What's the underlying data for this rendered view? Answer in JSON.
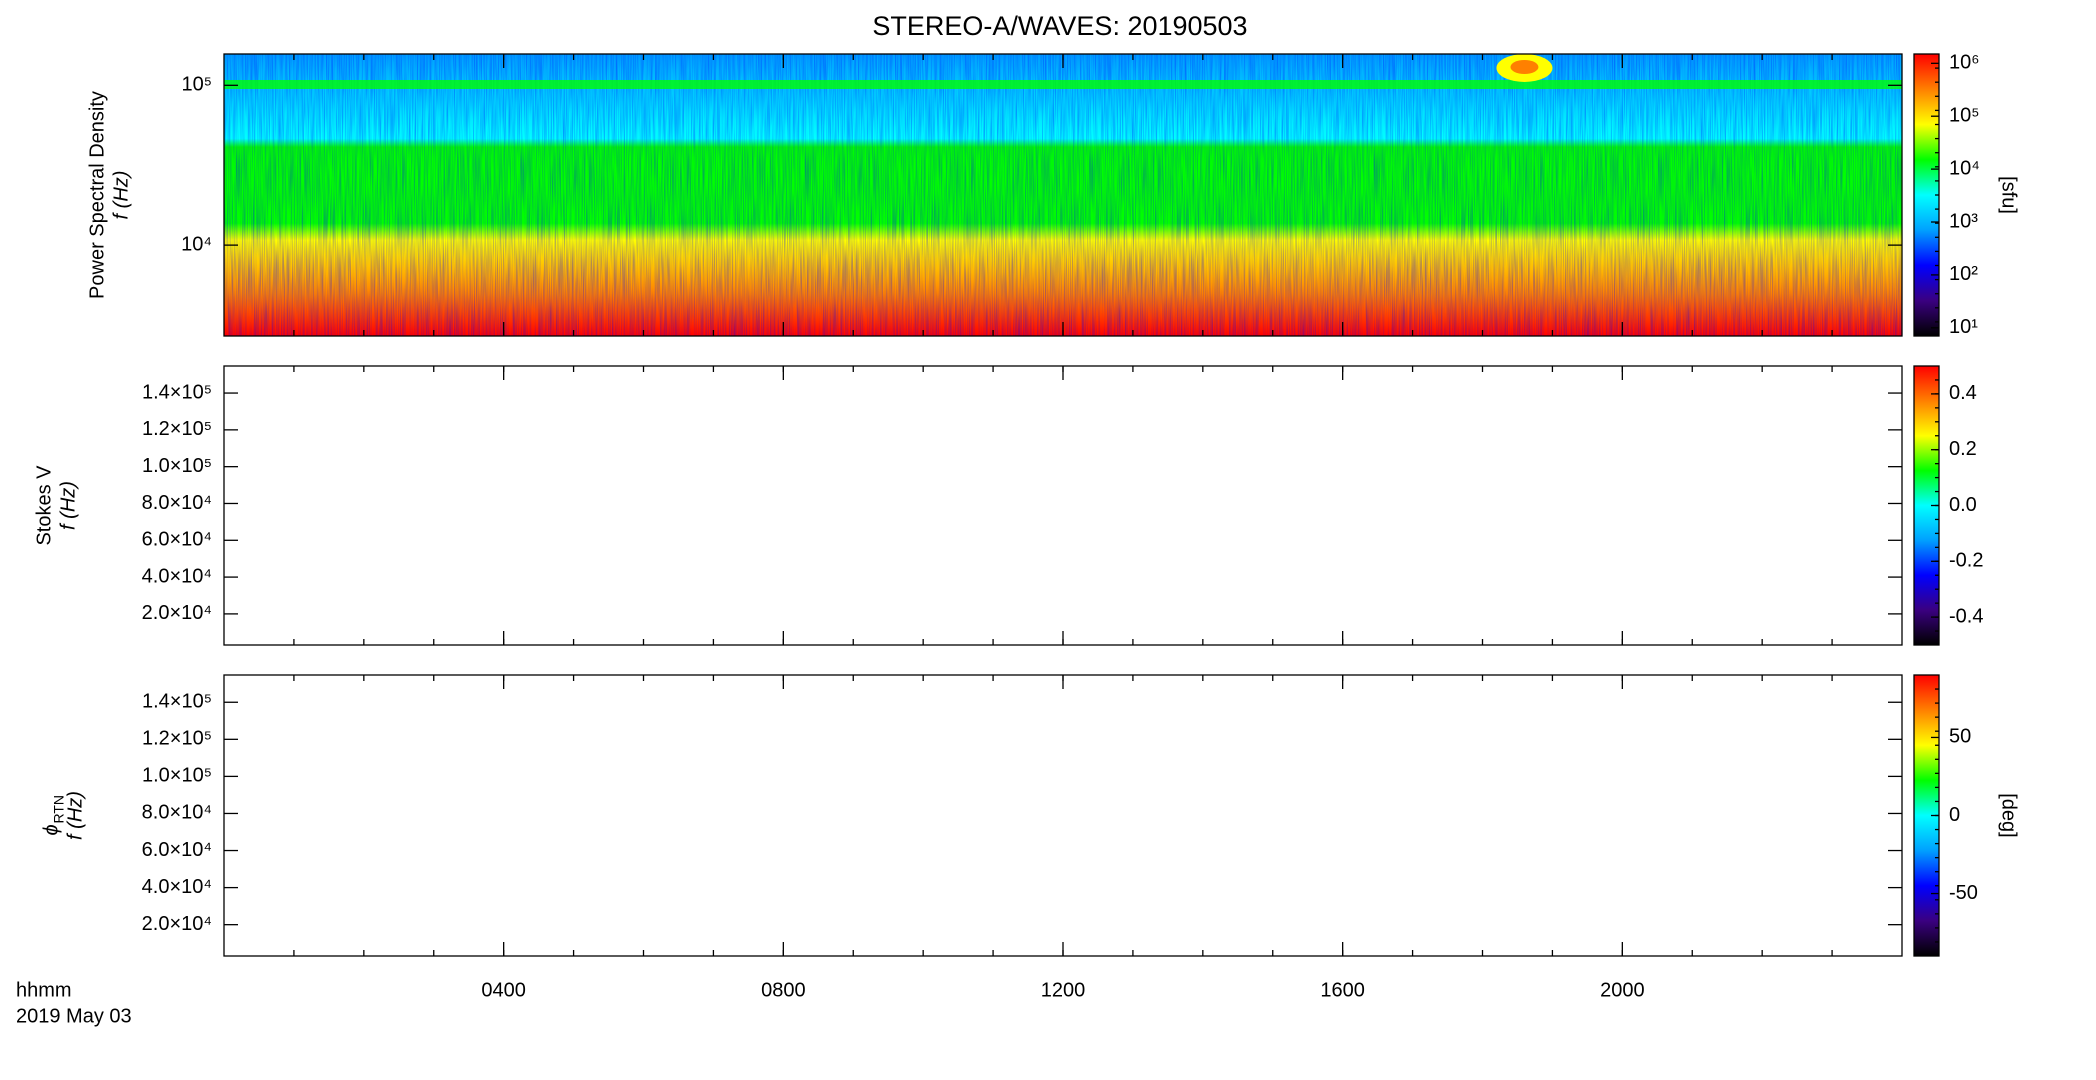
{
  "title": "STEREO-A/WAVES: 20190503",
  "x_axis": {
    "label": "hhmm",
    "date": "2019 May 03",
    "xlim": [
      0,
      24
    ],
    "xticks": [
      {
        "value": 4,
        "label": "0400"
      },
      {
        "value": 8,
        "label": "0800"
      },
      {
        "value": 12,
        "label": "1200"
      },
      {
        "value": 16,
        "label": "1600"
      },
      {
        "value": 20,
        "label": "2000"
      }
    ]
  },
  "colormap": [
    "#000000",
    "#3a0080",
    "#0000ff",
    "#00a0ff",
    "#00ffff",
    "#00ff00",
    "#ffff00",
    "#ff8000",
    "#ff0000"
  ],
  "chart_data": [
    {
      "type": "heatmap",
      "ylabel": [
        "Power Spectral Density",
        "f (Hz)"
      ],
      "ylog": true,
      "ylim": [
        2700,
        157000
      ],
      "yticks": [
        {
          "value": 10000,
          "label": "10⁴"
        },
        {
          "value": 100000,
          "label": "10⁵"
        }
      ],
      "clog": true,
      "clim": [
        7,
        1500000
      ],
      "clabel": "[sfu]",
      "cticks": [
        {
          "value": 10,
          "label": "10¹"
        },
        {
          "value": 100,
          "label": "10²"
        },
        {
          "value": 1000,
          "label": "10³"
        },
        {
          "value": 10000,
          "label": "10⁴"
        },
        {
          "value": 100000,
          "label": "10⁵"
        },
        {
          "value": 1000000,
          "label": "10⁶"
        }
      ]
    },
    {
      "type": "heatmap",
      "ylabel": [
        "Stokes V",
        "f (Hz)"
      ],
      "ylog": false,
      "ylim": [
        3100,
        154700
      ],
      "yticks": [
        {
          "value": 20000,
          "label": "2.0×10⁴"
        },
        {
          "value": 40000,
          "label": "4.0×10⁴"
        },
        {
          "value": 60000,
          "label": "6.0×10⁴"
        },
        {
          "value": 80000,
          "label": "8.0×10⁴"
        },
        {
          "value": 100000,
          "label": "1.0×10⁵"
        },
        {
          "value": 120000,
          "label": "1.2×10⁵"
        },
        {
          "value": 140000,
          "label": "1.4×10⁵"
        }
      ],
      "clog": false,
      "clim": [
        -0.5,
        0.5
      ],
      "cticks": [
        -0.4,
        -0.2,
        {
          "value": 0,
          "label": "0.0"
        },
        0.2,
        0.4
      ]
    },
    {
      "type": "heatmap",
      "ylabel": [
        "ϕ",
        "RTN",
        "f (Hz)"
      ],
      "ylog": false,
      "ylim": [
        3100,
        154700
      ],
      "yticks": [
        {
          "value": 20000,
          "label": "2.0×10⁴"
        },
        {
          "value": 40000,
          "label": "4.0×10⁴"
        },
        {
          "value": 60000,
          "label": "6.0×10⁴"
        },
        {
          "value": 80000,
          "label": "8.0×10⁴"
        },
        {
          "value": 100000,
          "label": "1.0×10⁵"
        },
        {
          "value": 120000,
          "label": "1.2×10⁵"
        },
        {
          "value": 140000,
          "label": "1.4×10⁵"
        }
      ],
      "clog": false,
      "clim": [
        -90,
        90
      ],
      "clabel": "[deg]",
      "cticks": [
        -50,
        0,
        50
      ]
    }
  ]
}
